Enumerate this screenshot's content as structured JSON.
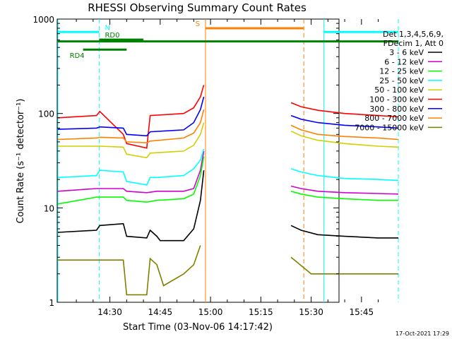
{
  "chart_data": {
    "type": "line",
    "title": "RHESSI Observing Summary Count Rates",
    "xlabel": "Start Time (03-Nov-06 14:17:42)",
    "ylabel": "Count Rate (s⁻¹ detector⁻¹)",
    "yscale": "log",
    "ylim": [
      1,
      1000
    ],
    "xlim_minutes": [
      14.3,
      98.3
    ],
    "x_ticks": [
      {
        "label": "14:30",
        "minute": 30
      },
      {
        "label": "14:45",
        "minute": 45
      },
      {
        "label": "15:00",
        "minute": 60
      },
      {
        "label": "15:15",
        "minute": 75
      },
      {
        "label": "15:30",
        "minute": 90
      },
      {
        "label": "15:45",
        "minute": 105
      }
    ],
    "y_ticks": [
      {
        "label": "1",
        "value": 1
      },
      {
        "label": "10",
        "value": 10
      },
      {
        "label": "100",
        "value": 100
      },
      {
        "label": "1000",
        "value": 1000
      }
    ],
    "legend_header": [
      "Det 1,3,4,5,6,9,",
      "FDecim 1, Att 0"
    ],
    "legend_position": "right",
    "series": [
      {
        "name": "3 - 6 keV",
        "color": "#000000",
        "segments": [
          [
            [
              14.5,
              5.5
            ],
            [
              26,
              5.8
            ],
            [
              27,
              6.5
            ],
            [
              34,
              6.8
            ],
            [
              35,
              5
            ],
            [
              41,
              4.8
            ],
            [
              42,
              5.8
            ],
            [
              44,
              5
            ],
            [
              45,
              4.5
            ],
            [
              52,
              4.5
            ],
            [
              55,
              6
            ],
            [
              57,
              12
            ],
            [
              58,
              25
            ]
          ],
          [
            [
              84,
              6.5
            ],
            [
              87,
              5.8
            ],
            [
              92,
              5.2
            ],
            [
              100,
              5
            ],
            [
              110,
              4.8
            ],
            [
              116,
              4.8
            ]
          ]
        ]
      },
      {
        "name": "6 - 12 keV",
        "color": "#d000d0",
        "segments": [
          [
            [
              14.5,
              15
            ],
            [
              26,
              16
            ],
            [
              27,
              16
            ],
            [
              34,
              16
            ],
            [
              35,
              15
            ],
            [
              41,
              14.5
            ],
            [
              44,
              15
            ],
            [
              52,
              15
            ],
            [
              55,
              16
            ],
            [
              57,
              25
            ],
            [
              58,
              40
            ]
          ],
          [
            [
              84,
              17
            ],
            [
              87,
              16
            ],
            [
              92,
              15
            ],
            [
              100,
              14.5
            ],
            [
              110,
              14.2
            ],
            [
              116,
              14
            ]
          ]
        ]
      },
      {
        "name": "12 - 25 keV",
        "color": "#00ff00",
        "segments": [
          [
            [
              14.5,
              11
            ],
            [
              26,
              13
            ],
            [
              27,
              13
            ],
            [
              34,
              13
            ],
            [
              35,
              12
            ],
            [
              41,
              11.5
            ],
            [
              44,
              12
            ],
            [
              52,
              12.5
            ],
            [
              55,
              14
            ],
            [
              57,
              22
            ],
            [
              58,
              35
            ]
          ],
          [
            [
              84,
              15
            ],
            [
              87,
              14
            ],
            [
              92,
              13
            ],
            [
              100,
              12.5
            ],
            [
              110,
              12
            ],
            [
              116,
              12
            ]
          ]
        ]
      },
      {
        "name": "25 - 50 keV",
        "color": "#00ffff",
        "segments": [
          [
            [
              14.5,
              21
            ],
            [
              26,
              22
            ],
            [
              27,
              25
            ],
            [
              34,
              24
            ],
            [
              35,
              19
            ],
            [
              41,
              17.5
            ],
            [
              42,
              21
            ],
            [
              44,
              21
            ],
            [
              52,
              22
            ],
            [
              55,
              26
            ],
            [
              57,
              32
            ],
            [
              58,
              42
            ]
          ],
          [
            [
              84,
              26
            ],
            [
              87,
              24
            ],
            [
              92,
              22
            ],
            [
              100,
              20.5
            ],
            [
              110,
              20
            ],
            [
              116,
              19.5
            ]
          ]
        ]
      },
      {
        "name": "50 - 100 keV",
        "color": "#d0d000",
        "segments": [
          [
            [
              14.5,
              45
            ],
            [
              26,
              45
            ],
            [
              27,
              45
            ],
            [
              34,
              44
            ],
            [
              35,
              37
            ],
            [
              41,
              34
            ],
            [
              42,
              38
            ],
            [
              52,
              40
            ],
            [
              55,
              46
            ],
            [
              57,
              60
            ],
            [
              58,
              80
            ]
          ],
          [
            [
              84,
              65
            ],
            [
              87,
              58
            ],
            [
              92,
              52
            ],
            [
              100,
              48
            ],
            [
              110,
              45
            ],
            [
              116,
              44
            ]
          ]
        ]
      },
      {
        "name": "100 - 300 keV",
        "color": "#ff0000",
        "segments": [
          [
            [
              14.5,
              90
            ],
            [
              26,
              95
            ],
            [
              27,
              105
            ],
            [
              34,
              60
            ],
            [
              35,
              48
            ],
            [
              41,
              43
            ],
            [
              42,
              95
            ],
            [
              52,
              100
            ],
            [
              55,
              115
            ],
            [
              57,
              150
            ],
            [
              58,
              200
            ]
          ],
          [
            [
              84,
              130
            ],
            [
              87,
              118
            ],
            [
              92,
              108
            ],
            [
              100,
              100
            ],
            [
              110,
              95
            ],
            [
              116,
              92
            ]
          ]
        ]
      },
      {
        "name": "300 - 800 keV",
        "color": "#0000ff",
        "segments": [
          [
            [
              14.5,
              68
            ],
            [
              26,
              70
            ],
            [
              27,
              72
            ],
            [
              34,
              70
            ],
            [
              35,
              60
            ],
            [
              41,
              58
            ],
            [
              42,
              64
            ],
            [
              52,
              67
            ],
            [
              55,
              80
            ],
            [
              57,
              110
            ],
            [
              58,
              150
            ]
          ],
          [
            [
              84,
              95
            ],
            [
              87,
              87
            ],
            [
              92,
              80
            ],
            [
              100,
              75
            ],
            [
              110,
              72
            ],
            [
              116,
              70
            ]
          ]
        ]
      },
      {
        "name": "800 - 7000 keV",
        "color": "#ff8000",
        "segments": [
          [
            [
              14.5,
              53
            ],
            [
              26,
              55
            ],
            [
              27,
              56
            ],
            [
              34,
              55
            ],
            [
              35,
              50
            ],
            [
              41,
              49
            ],
            [
              42,
              51
            ],
            [
              52,
              55
            ],
            [
              55,
              62
            ],
            [
              57,
              80
            ],
            [
              58,
              110
            ]
          ],
          [
            [
              84,
              75
            ],
            [
              87,
              67
            ],
            [
              92,
              60
            ],
            [
              100,
              57
            ],
            [
              110,
              55
            ],
            [
              116,
              53
            ]
          ]
        ]
      },
      {
        "name": "7000 - 15000 keV",
        "color": "#808000",
        "segments": [
          [
            [
              14.5,
              2.8
            ],
            [
              26,
              2.8
            ],
            [
              27,
              2.8
            ],
            [
              34,
              2.8
            ],
            [
              35,
              1.2
            ],
            [
              41,
              1.2
            ],
            [
              42,
              2.9
            ],
            [
              44,
              2.5
            ],
            [
              46,
              1.5
            ],
            [
              52,
              2
            ],
            [
              55,
              2.5
            ],
            [
              57,
              4
            ]
          ],
          [
            [
              84,
              3
            ],
            [
              90,
              2
            ],
            [
              100,
              2
            ],
            [
              110,
              2
            ],
            [
              116,
              2
            ]
          ]
        ]
      }
    ],
    "bars": [
      {
        "label": "N",
        "color": "#00ffff",
        "level": 730,
        "spans": [
          [
            14.5,
            26.8
          ],
          [
            93.8,
            116
          ]
        ],
        "label_at": 28.5
      },
      {
        "label": "RD0",
        "color": "#008000",
        "level": 605,
        "spans": [
          [
            26.8,
            40
          ]
        ],
        "label_at": 28.5
      },
      {
        "label": "RD4",
        "color": "#008000",
        "level": 475,
        "spans": [
          [
            22,
            35
          ]
        ],
        "label_at": 18
      },
      {
        "label": "",
        "color": "#008000",
        "level": 580,
        "spans": [
          [
            14.5,
            116
          ]
        ],
        "label_at": 0
      },
      {
        "label": "S",
        "color": "#ff8000",
        "level": 800,
        "spans": [
          [
            58.5,
            87.8
          ]
        ],
        "label_at": 55.5
      }
    ],
    "vlines": [
      {
        "minute": 14.5,
        "color": "#00ffff",
        "dashed": false
      },
      {
        "minute": 26.8,
        "color": "#00ffff",
        "dashed": true
      },
      {
        "minute": 58.5,
        "color": "#ff8000",
        "dashed": false
      },
      {
        "minute": 87.8,
        "color": "#ff8000",
        "dashed": true
      },
      {
        "minute": 93.8,
        "color": "#00ffff",
        "dashed": false
      },
      {
        "minute": 116,
        "color": "#00ffff",
        "dashed": true
      }
    ],
    "grid": false
  },
  "footer": {
    "date_stamp": "17-Oct-2021 17:29"
  }
}
